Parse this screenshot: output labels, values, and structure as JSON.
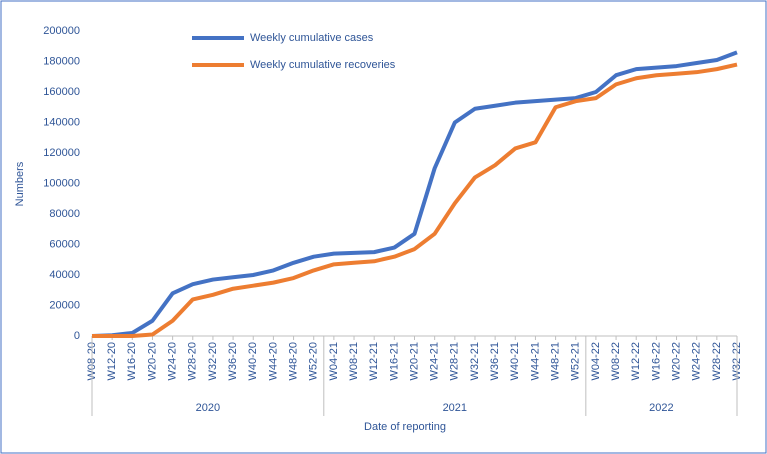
{
  "chart_data": {
    "type": "line",
    "x_label": "Date of reporting",
    "y_label": "Numbers",
    "categories": [
      "W08-20",
      "W12-20",
      "W16-20",
      "W20-20",
      "W24-20",
      "W28-20",
      "W32-20",
      "W36-20",
      "W40-20",
      "W44-20",
      "W48-20",
      "W52-20",
      "W04-21",
      "W08-21",
      "W12-21",
      "W16-21",
      "W20-21",
      "W24-21",
      "W28-21",
      "W32-21",
      "W36-21",
      "W40-21",
      "W44-21",
      "W48-21",
      "W52-21",
      "W04-22",
      "W08-22",
      "W12-22",
      "W16-22",
      "W20-22",
      "W24-22",
      "W28-22",
      "W32-22"
    ],
    "groups": [
      "2020",
      "2021",
      "2022"
    ],
    "series": [
      {
        "name": "Weekly cumulative cases",
        "color": "#4472c4",
        "values": [
          0,
          500,
          2000,
          10000,
          28000,
          34000,
          37000,
          38500,
          40000,
          43000,
          48000,
          52000,
          54000,
          54500,
          55000,
          58000,
          67000,
          110000,
          140000,
          149000,
          151000,
          153000,
          154000,
          155000,
          156000,
          160000,
          171000,
          175000,
          176000,
          177000,
          179000,
          181000,
          186000
        ]
      },
      {
        "name": "Weekly cumulative recoveries",
        "color": "#ed7d31",
        "values": [
          0,
          0,
          0,
          1000,
          10000,
          24000,
          27000,
          31000,
          33000,
          35000,
          38000,
          43000,
          47000,
          48000,
          49000,
          52000,
          57000,
          67000,
          87000,
          104000,
          112000,
          123000,
          127000,
          150000,
          154000,
          156000,
          165000,
          169000,
          171000,
          172000,
          173000,
          175000,
          178000
        ]
      }
    ],
    "ylim": [
      0,
      200000
    ],
    "yticks": [
      0,
      20000,
      40000,
      60000,
      80000,
      100000,
      120000,
      140000,
      160000,
      180000,
      200000
    ],
    "grid": false,
    "legend": "top-left"
  }
}
